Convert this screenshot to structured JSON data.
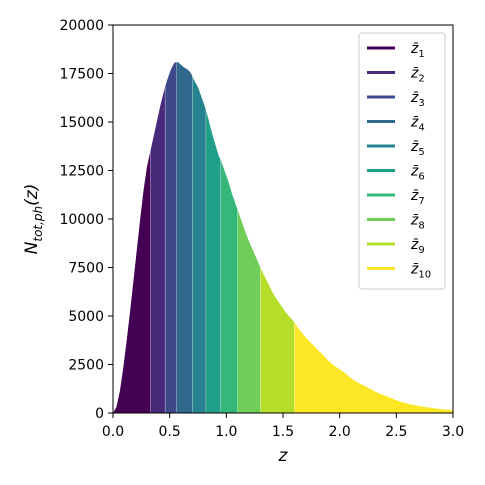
{
  "chart_data": {
    "type": "area",
    "xlabel": "z",
    "ylabel": "N_{tot,ph}(z)",
    "xlim": [
      0.0,
      3.0
    ],
    "ylim": [
      0,
      20000
    ],
    "xticks": [
      "0.0",
      "0.5",
      "1.0",
      "1.5",
      "2.0",
      "2.5",
      "3.0"
    ],
    "yticks": [
      "0",
      "2500",
      "5000",
      "7500",
      "10000",
      "12500",
      "15000",
      "17500",
      "20000"
    ],
    "legend_position": "top-right",
    "grid": false,
    "distribution": {
      "x": [
        0.0,
        0.03,
        0.06,
        0.09,
        0.12,
        0.15,
        0.18,
        0.21,
        0.24,
        0.27,
        0.3,
        0.33,
        0.36,
        0.39,
        0.42,
        0.45,
        0.48,
        0.51,
        0.54,
        0.57,
        0.6,
        0.63,
        0.66,
        0.69,
        0.72,
        0.75,
        0.78,
        0.81,
        0.84,
        0.87,
        0.9,
        0.93,
        0.96,
        0.99,
        1.02,
        1.05,
        1.08,
        1.11,
        1.14,
        1.17,
        1.2,
        1.23,
        1.26,
        1.29,
        1.32,
        1.35,
        1.38,
        1.41,
        1.44,
        1.47,
        1.5,
        1.53,
        1.56,
        1.59,
        1.62,
        1.65,
        1.7,
        1.75,
        1.8,
        1.85,
        1.9,
        1.95,
        2.0,
        2.05,
        2.1,
        2.15,
        2.2,
        2.25,
        2.3,
        2.35,
        2.4,
        2.45,
        2.5,
        2.55,
        2.6,
        2.65,
        2.7,
        2.75,
        2.8,
        2.85,
        2.9,
        2.95,
        3.0
      ],
      "y": [
        0,
        300,
        1100,
        2300,
        3700,
        5200,
        6800,
        8400,
        10000,
        11500,
        12700,
        13500,
        14300,
        15100,
        15900,
        16600,
        17200,
        17700,
        18050,
        18100,
        17950,
        17800,
        17700,
        17500,
        17100,
        16800,
        16300,
        15800,
        15200,
        14500,
        13900,
        13300,
        12900,
        12400,
        11900,
        11300,
        10800,
        10300,
        9800,
        9300,
        8850,
        8450,
        8050,
        7650,
        7250,
        6900,
        6550,
        6200,
        5900,
        5650,
        5400,
        5150,
        4950,
        4750,
        4500,
        4250,
        3900,
        3600,
        3300,
        3000,
        2700,
        2450,
        2250,
        2050,
        1800,
        1600,
        1450,
        1300,
        1150,
        1000,
        900,
        780,
        660,
        560,
        480,
        420,
        360,
        310,
        270,
        230,
        200,
        170,
        140
      ]
    },
    "bins": {
      "edges": [
        0.0,
        0.33,
        0.46,
        0.56,
        0.7,
        0.82,
        0.95,
        1.1,
        1.3,
        1.6,
        3.0
      ],
      "colors": [
        "#440154",
        "#482878",
        "#3e4989",
        "#31688e",
        "#26828e",
        "#1f9e89",
        "#35b779",
        "#6ece58",
        "#b5de2b",
        "#fde725"
      ]
    },
    "series": [
      {
        "name": "z̄",
        "sub": "1",
        "color": "#440154"
      },
      {
        "name": "z̄",
        "sub": "2",
        "color": "#482878"
      },
      {
        "name": "z̄",
        "sub": "3",
        "color": "#3e4989"
      },
      {
        "name": "z̄",
        "sub": "4",
        "color": "#31688e"
      },
      {
        "name": "z̄",
        "sub": "5",
        "color": "#26828e"
      },
      {
        "name": "z̄",
        "sub": "6",
        "color": "#1f9e89"
      },
      {
        "name": "z̄",
        "sub": "7",
        "color": "#35b779"
      },
      {
        "name": "z̄",
        "sub": "8",
        "color": "#6ece58"
      },
      {
        "name": "z̄",
        "sub": "9",
        "color": "#b5de2b"
      },
      {
        "name": "z̄",
        "sub": "10",
        "color": "#fde725"
      }
    ]
  }
}
